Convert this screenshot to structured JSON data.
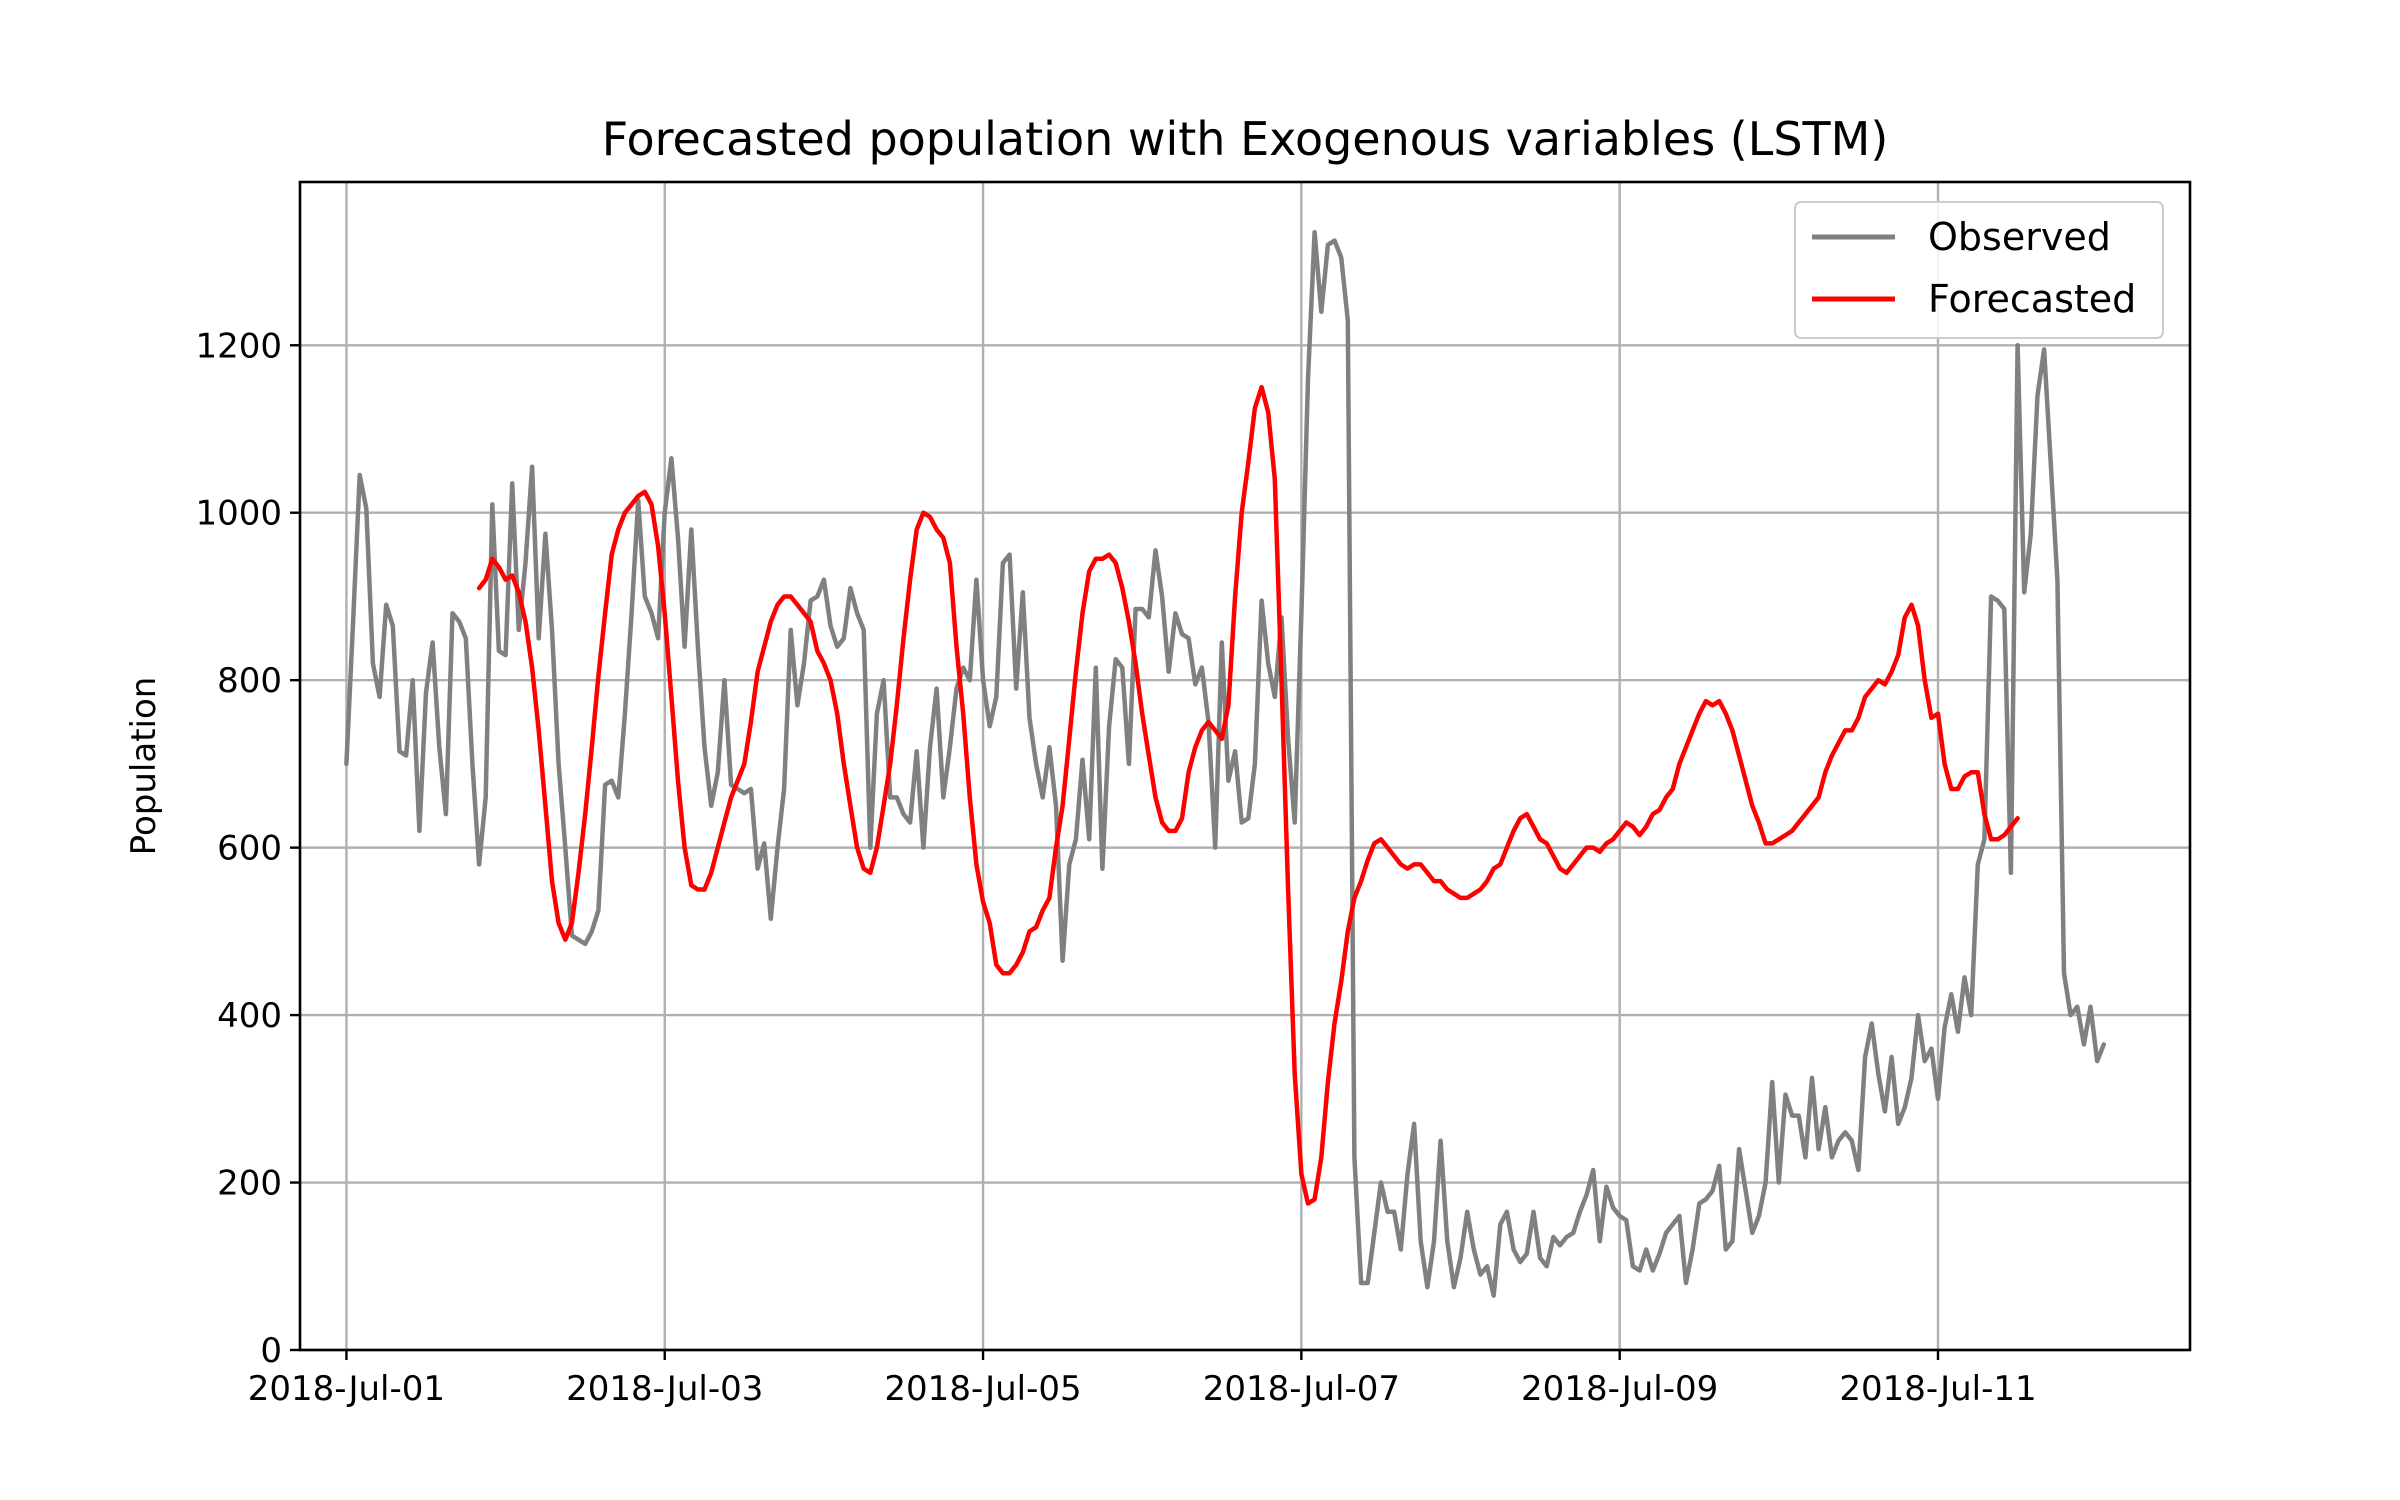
{
  "chart_data": {
    "type": "line",
    "title": "Forecasted population with Exogenous variables (LSTM)",
    "xlabel": "",
    "ylabel": "Population",
    "x_start": "2018-07-01T00:00",
    "x_step_hours": 1,
    "xlim": [
      "2018-06-30T17:00",
      "2018-07-12T14:00"
    ],
    "ylim": [
      0,
      1395
    ],
    "x_ticks": [
      {
        "date": "2018-07-01",
        "label": "2018-Jul-01"
      },
      {
        "date": "2018-07-03",
        "label": "2018-Jul-03"
      },
      {
        "date": "2018-07-05",
        "label": "2018-Jul-05"
      },
      {
        "date": "2018-07-07",
        "label": "2018-Jul-07"
      },
      {
        "date": "2018-07-09",
        "label": "2018-Jul-09"
      },
      {
        "date": "2018-07-11",
        "label": "2018-Jul-11"
      }
    ],
    "y_ticks": [
      0,
      200,
      400,
      600,
      800,
      1000,
      1200
    ],
    "grid": true,
    "legend_position": "top-right",
    "series": [
      {
        "name": "Observed",
        "color": "#808080",
        "start": "2018-07-01T00:00",
        "values": [
          700,
          870,
          1045,
          1005,
          820,
          780,
          890,
          865,
          715,
          710,
          800,
          620,
          785,
          845,
          720,
          640,
          880,
          870,
          850,
          700,
          580,
          660,
          1010,
          835,
          830,
          1035,
          860,
          940,
          1055,
          850,
          975,
          860,
          700,
          600,
          495,
          490,
          485,
          500,
          525,
          675,
          680,
          660,
          760,
          880,
          1015,
          900,
          880,
          850,
          1000,
          1065,
          970,
          840,
          980,
          840,
          720,
          650,
          690,
          800,
          675,
          670,
          665,
          670,
          575,
          605,
          515,
          600,
          670,
          860,
          770,
          820,
          895,
          900,
          920,
          865,
          840,
          850,
          910,
          880,
          860,
          600,
          760,
          800,
          660,
          660,
          640,
          630,
          715,
          600,
          720,
          790,
          660,
          720,
          790,
          815,
          800,
          920,
          800,
          745,
          780,
          940,
          950,
          790,
          905,
          755,
          700,
          660,
          720,
          650,
          465,
          580,
          610,
          705,
          610,
          815,
          575,
          745,
          825,
          815,
          700,
          885,
          885,
          875,
          955,
          900,
          810,
          880,
          855,
          850,
          795,
          815,
          750,
          600,
          845,
          680,
          715,
          630,
          635,
          700,
          895,
          820,
          780,
          875,
          730,
          630,
          880,
          1160,
          1335,
          1240,
          1320,
          1325,
          1305,
          1230,
          230,
          80,
          80,
          140,
          200,
          165,
          165,
          120,
          210,
          270,
          130,
          75,
          130,
          250,
          130,
          75,
          110,
          165,
          120,
          90,
          100,
          65,
          150,
          165,
          120,
          105,
          115,
          165,
          110,
          100,
          135,
          125,
          135,
          140,
          165,
          185,
          215,
          130,
          195,
          170,
          160,
          155,
          100,
          95,
          120,
          95,
          115,
          140,
          150,
          160,
          80,
          120,
          175,
          180,
          190,
          220,
          120,
          130,
          240,
          190,
          140,
          160,
          200,
          320,
          200,
          305,
          280,
          280,
          230,
          325,
          240,
          290,
          230,
          250,
          260,
          250,
          215,
          350,
          390,
          330,
          285,
          350,
          270,
          290,
          325,
          400,
          345,
          360,
          300,
          385,
          425,
          380,
          445,
          400,
          580,
          610,
          900,
          895,
          885,
          570,
          1200,
          905,
          975,
          1140,
          1195,
          1060,
          920,
          450,
          400,
          410,
          365,
          410,
          345,
          365
        ]
      },
      {
        "name": "Forecasted",
        "color": "#ff0000",
        "start": "2018-07-01T20:00",
        "values": [
          910,
          920,
          945,
          935,
          920,
          925,
          905,
          870,
          815,
          740,
          650,
          560,
          510,
          490,
          510,
          570,
          640,
          720,
          805,
          880,
          950,
          980,
          1000,
          1010,
          1020,
          1025,
          1010,
          960,
          880,
          780,
          680,
          600,
          555,
          550,
          550,
          570,
          600,
          630,
          660,
          680,
          700,
          750,
          810,
          840,
          870,
          890,
          900,
          900,
          890,
          880,
          870,
          835,
          820,
          800,
          760,
          700,
          650,
          600,
          575,
          570,
          600,
          650,
          700,
          770,
          850,
          920,
          980,
          1000,
          995,
          980,
          970,
          940,
          840,
          760,
          660,
          580,
          535,
          510,
          460,
          450,
          450,
          460,
          475,
          500,
          505,
          525,
          540,
          600,
          650,
          730,
          810,
          880,
          930,
          945,
          945,
          950,
          940,
          910,
          870,
          820,
          760,
          710,
          660,
          630,
          620,
          620,
          635,
          690,
          720,
          740,
          750,
          740,
          730,
          770,
          900,
          1000,
          1060,
          1125,
          1150,
          1120,
          1040,
          800,
          550,
          330,
          210,
          175,
          180,
          230,
          320,
          390,
          440,
          500,
          540,
          560,
          585,
          605,
          610,
          600,
          590,
          580,
          575,
          580,
          580,
          570,
          560,
          560,
          550,
          545,
          540,
          540,
          545,
          550,
          560,
          575,
          580,
          600,
          620,
          635,
          640,
          625,
          610,
          605,
          590,
          575,
          570,
          580,
          590,
          600,
          600,
          595,
          605,
          610,
          620,
          630,
          625,
          615,
          625,
          640,
          645,
          660,
          670,
          700,
          720,
          740,
          760,
          775,
          770,
          775,
          760,
          740,
          710,
          680,
          650,
          630,
          605,
          605,
          610,
          615,
          620,
          630,
          640,
          650,
          660,
          690,
          710,
          725,
          740,
          740,
          755,
          780,
          790,
          800,
          795,
          810,
          830,
          875,
          890,
          865,
          800,
          755,
          760,
          700,
          670,
          670,
          685,
          690,
          690,
          640,
          610,
          610,
          615,
          625,
          635
        ]
      }
    ]
  }
}
